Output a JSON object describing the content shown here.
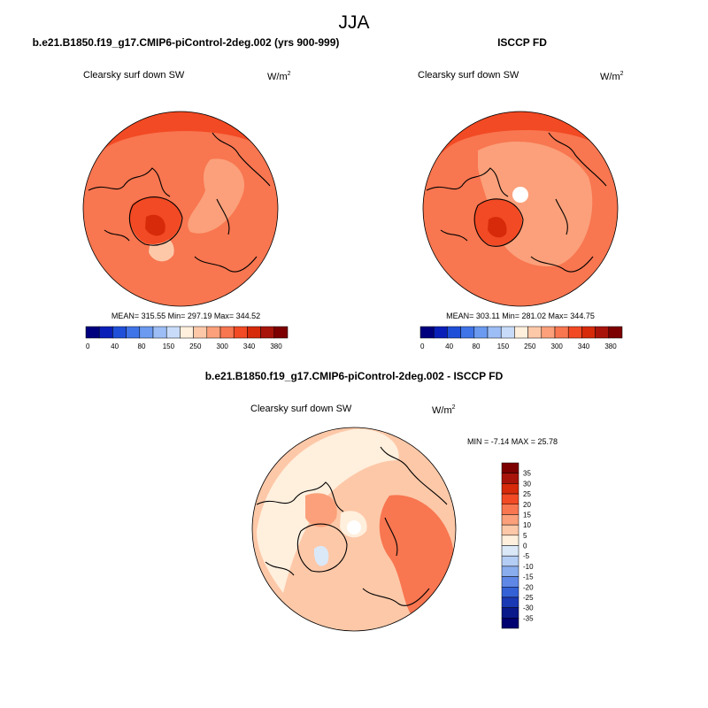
{
  "figure": {
    "title": "JJA"
  },
  "chart_data": [
    {
      "type": "heatmap",
      "projection": "north-polar-stereographic",
      "title": "b.e21.B1850.f19_g17.CMIP6-piControl-2deg.002 (yrs 900-999)",
      "variable": "Clearsky surf down SW",
      "units": "W/m",
      "units_exp": "2",
      "stats": {
        "label": "MEAN= 315.55  Min= 297.19  Max= 344.52",
        "mean": 315.55,
        "min": 297.19,
        "max": 344.52
      },
      "colorbar": {
        "orientation": "horizontal",
        "colors": [
          "#00007f",
          "#0a1fb8",
          "#1f4fd8",
          "#3f74e8",
          "#6b9af0",
          "#9cbdf5",
          "#c8dcfa",
          "#ffefdd",
          "#fdc8a8",
          "#fba07a",
          "#f87650",
          "#f24a24",
          "#d62a0a",
          "#a8140a",
          "#7c0000"
        ],
        "labels": [
          "0",
          "40",
          "80",
          "150",
          "250",
          "300",
          "340",
          "380"
        ]
      }
    },
    {
      "type": "heatmap",
      "projection": "north-polar-stereographic",
      "title": "ISCCP FD",
      "variable": "Clearsky surf down SW",
      "units": "W/m",
      "units_exp": "2",
      "stats": {
        "label": "MEAN= 303.11  Min= 281.02  Max= 344.75",
        "mean": 303.11,
        "min": 281.02,
        "max": 344.75
      },
      "colorbar": {
        "orientation": "horizontal",
        "colors": [
          "#00007f",
          "#0a1fb8",
          "#1f4fd8",
          "#3f74e8",
          "#6b9af0",
          "#9cbdf5",
          "#c8dcfa",
          "#ffefdd",
          "#fdc8a8",
          "#fba07a",
          "#f87650",
          "#f24a24",
          "#d62a0a",
          "#a8140a",
          "#7c0000"
        ],
        "labels": [
          "0",
          "40",
          "80",
          "150",
          "250",
          "300",
          "340",
          "380"
        ]
      }
    },
    {
      "type": "heatmap",
      "projection": "north-polar-stereographic",
      "title": "b.e21.B1850.f19_g17.CMIP6-piControl-2deg.002 - ISCCP FD",
      "variable": "Clearsky surf down SW",
      "units": "W/m",
      "units_exp": "2",
      "stats": {
        "label": "MIN =  -7.14 MAX =  25.78",
        "min": -7.14,
        "max": 25.78
      },
      "colorbar": {
        "orientation": "vertical",
        "colors": [
          "#7c0000",
          "#a8140a",
          "#d62a0a",
          "#f24a24",
          "#f87650",
          "#fba07a",
          "#fdc8a8",
          "#ffefdd",
          "#dbe8f8",
          "#b4cdf4",
          "#8aadee",
          "#5f88e6",
          "#3461d6",
          "#1a39b4",
          "#0a1a8a",
          "#000070"
        ],
        "labels": [
          "35",
          "30",
          "25",
          "20",
          "15",
          "10",
          "5",
          "0",
          "-5",
          "-10",
          "-15",
          "-20",
          "-25",
          "-30",
          "-35"
        ]
      }
    }
  ]
}
